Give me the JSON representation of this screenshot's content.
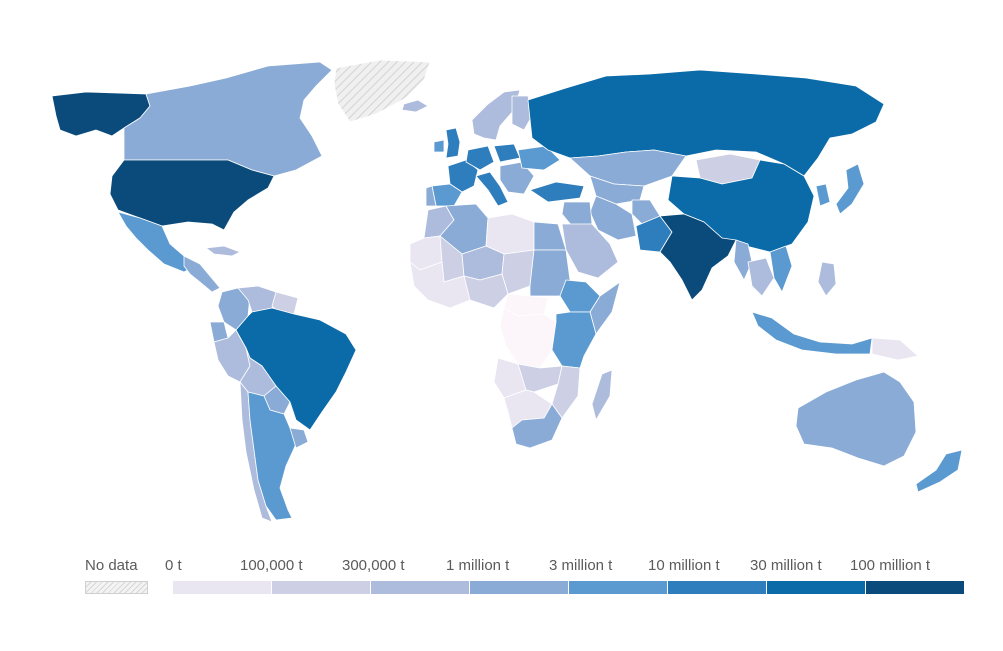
{
  "legend": {
    "no_data_label": "No data",
    "bins": [
      {
        "label": "0 t",
        "color": "#fcf5fa"
      },
      {
        "label": "100,000 t",
        "color": "#e9e6f2"
      },
      {
        "label": "300,000 t",
        "color": "#cdd0e5"
      },
      {
        "label": "1 million t",
        "color": "#adbbdc"
      },
      {
        "label": "3 million t",
        "color": "#89abd6"
      },
      {
        "label": "10 million t",
        "color": "#5b9ad0"
      },
      {
        "label": "30 million t",
        "color": "#2e7dbd"
      },
      {
        "label": "100 million t",
        "color": "#0b6aa8"
      }
    ],
    "last_color": "#0b4b7b",
    "no_data_color": "#e0e0e0"
  },
  "countries": [
    {
      "name": "Alaska (USA)",
      "color": "#0b4b7b"
    },
    {
      "name": "Canada",
      "color": "#89abd6"
    },
    {
      "name": "Greenland",
      "color": "no-data"
    },
    {
      "name": "United States",
      "color": "#0b4b7b"
    },
    {
      "name": "Mexico",
      "color": "#5b9ad0"
    },
    {
      "name": "Central America",
      "color": "#89abd6"
    },
    {
      "name": "Cuba",
      "color": "#adbbdc"
    },
    {
      "name": "Colombia",
      "color": "#89abd6"
    },
    {
      "name": "Venezuela",
      "color": "#adbbdc"
    },
    {
      "name": "Guianas",
      "color": "#cdd0e5"
    },
    {
      "name": "Ecuador",
      "color": "#89abd6"
    },
    {
      "name": "Peru",
      "color": "#adbbdc"
    },
    {
      "name": "Brazil",
      "color": "#0b6aa8"
    },
    {
      "name": "Bolivia",
      "color": "#adbbdc"
    },
    {
      "name": "Paraguay",
      "color": "#89abd6"
    },
    {
      "name": "Chile",
      "color": "#adbbdc"
    },
    {
      "name": "Argentina",
      "color": "#5b9ad0"
    },
    {
      "name": "Uruguay",
      "color": "#89abd6"
    },
    {
      "name": "Iceland",
      "color": "#adbbdc"
    },
    {
      "name": "United Kingdom",
      "color": "#2e7dbd"
    },
    {
      "name": "Ireland",
      "color": "#5b9ad0"
    },
    {
      "name": "Scandinavia",
      "color": "#adbbdc"
    },
    {
      "name": "Finland",
      "color": "#adbbdc"
    },
    {
      "name": "France",
      "color": "#2e7dbd"
    },
    {
      "name": "Spain",
      "color": "#5b9ad0"
    },
    {
      "name": "Portugal",
      "color": "#89abd6"
    },
    {
      "name": "Germany",
      "color": "#2e7dbd"
    },
    {
      "name": "Poland",
      "color": "#2e7dbd"
    },
    {
      "name": "Italy",
      "color": "#2e7dbd"
    },
    {
      "name": "Balkans",
      "color": "#89abd6"
    },
    {
      "name": "Ukraine",
      "color": "#5b9ad0"
    },
    {
      "name": "Turkey",
      "color": "#2e7dbd"
    },
    {
      "name": "Russia",
      "color": "#0b6aa8"
    },
    {
      "name": "Kazakhstan",
      "color": "#89abd6"
    },
    {
      "name": "Central Asia",
      "color": "#89abd6"
    },
    {
      "name": "Mongolia",
      "color": "#cdd0e5"
    },
    {
      "name": "China",
      "color": "#0b6aa8"
    },
    {
      "name": "Korea",
      "color": "#5b9ad0"
    },
    {
      "name": "Japan",
      "color": "#5b9ad0"
    },
    {
      "name": "Iran",
      "color": "#89abd6"
    },
    {
      "name": "Iraq & Syria",
      "color": "#89abd6"
    },
    {
      "name": "Saudi Arabia",
      "color": "#adbbdc"
    },
    {
      "name": "Afghanistan",
      "color": "#89abd6"
    },
    {
      "name": "Pakistan",
      "color": "#2e7dbd"
    },
    {
      "name": "India",
      "color": "#0b4b7b"
    },
    {
      "name": "Myanmar",
      "color": "#89abd6"
    },
    {
      "name": "Thailand",
      "color": "#adbbdc"
    },
    {
      "name": "Vietnam",
      "color": "#5b9ad0"
    },
    {
      "name": "Philippines",
      "color": "#adbbdc"
    },
    {
      "name": "Indonesia",
      "color": "#5b9ad0"
    },
    {
      "name": "Papua New Guinea",
      "color": "#e9e6f2"
    },
    {
      "name": "Australia",
      "color": "#89abd6"
    },
    {
      "name": "New Zealand",
      "color": "#5b9ad0"
    },
    {
      "name": "Morocco",
      "color": "#adbbdc"
    },
    {
      "name": "Algeria",
      "color": "#89abd6"
    },
    {
      "name": "Libya",
      "color": "#e9e6f2"
    },
    {
      "name": "Egypt",
      "color": "#89abd6"
    },
    {
      "name": "Mauritania",
      "color": "#e9e6f2"
    },
    {
      "name": "Mali",
      "color": "#cdd0e5"
    },
    {
      "name": "Niger",
      "color": "#adbbdc"
    },
    {
      "name": "Chad",
      "color": "#cdd0e5"
    },
    {
      "name": "Sudan",
      "color": "#89abd6"
    },
    {
      "name": "West Africa coast",
      "color": "#e9e6f2"
    },
    {
      "name": "Nigeria",
      "color": "#cdd0e5"
    },
    {
      "name": "Ethiopia",
      "color": "#5b9ad0"
    },
    {
      "name": "Somalia",
      "color": "#89abd6"
    },
    {
      "name": "Central African Republic",
      "color": "#fcf5fa"
    },
    {
      "name": "DR Congo",
      "color": "#fcf5fa"
    },
    {
      "name": "Kenya & Tanzania",
      "color": "#5b9ad0"
    },
    {
      "name": "Angola",
      "color": "#e9e6f2"
    },
    {
      "name": "Zambia",
      "color": "#cdd0e5"
    },
    {
      "name": "Mozambique",
      "color": "#cdd0e5"
    },
    {
      "name": "Namibia & Botswana",
      "color": "#e9e6f2"
    },
    {
      "name": "South Africa",
      "color": "#89abd6"
    },
    {
      "name": "Madagascar",
      "color": "#adbbdc"
    }
  ]
}
